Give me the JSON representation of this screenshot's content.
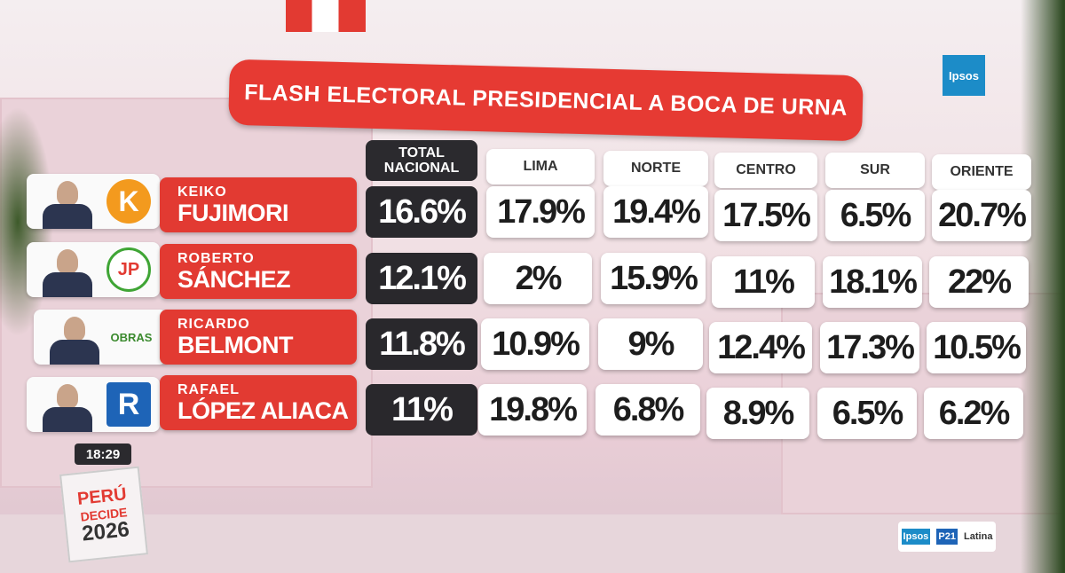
{
  "header": {
    "title": "FLASH ELECTORAL PRESIDENCIAL A BOCA DE URNA"
  },
  "table": {
    "columns": [
      "TOTAL NACIONAL",
      "LIMA",
      "NORTE",
      "CENTRO",
      "SUR",
      "ORIENTE"
    ],
    "rows": [
      {
        "first_name": "KEIKO",
        "last_name": "FUJIMORI",
        "party": "K",
        "values": [
          "16.6%",
          "17.9%",
          "19.4%",
          "17.5%",
          "6.5%",
          "20.7%"
        ]
      },
      {
        "first_name": "ROBERTO",
        "last_name": "SÁNCHEZ",
        "party": "JP",
        "values": [
          "12.1%",
          "2%",
          "15.9%",
          "11%",
          "18.1%",
          "22%"
        ]
      },
      {
        "first_name": "RICARDO",
        "last_name": "BELMONT",
        "party": "OBRAS",
        "values": [
          "11.8%",
          "10.9%",
          "9%",
          "12.4%",
          "17.3%",
          "10.5%"
        ]
      },
      {
        "first_name": "RAFAEL",
        "last_name": "LÓPEZ ALIACA",
        "party": "R",
        "values": [
          "11%",
          "19.8%",
          "6.8%",
          "8.9%",
          "6.5%",
          "6.2%"
        ]
      }
    ]
  },
  "clock": "18:29",
  "branding": {
    "show_line1": "PERÚ",
    "show_line2": "DECIDE",
    "show_year": "2026",
    "pollster": "Ipsos",
    "partner": "P21",
    "channel": "Latina"
  }
}
